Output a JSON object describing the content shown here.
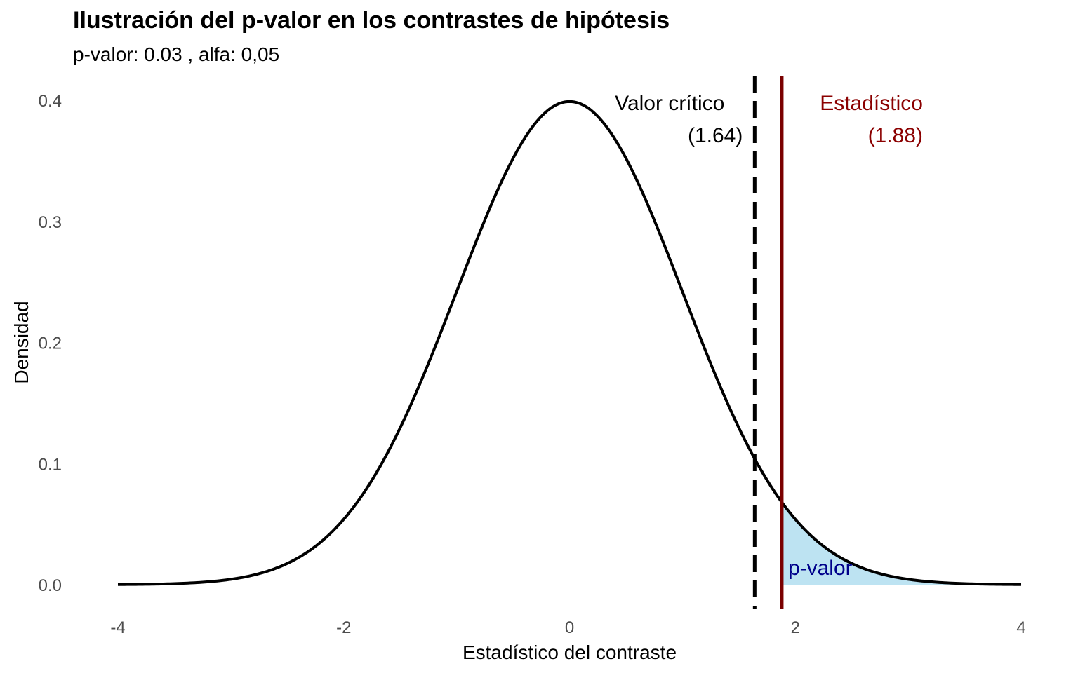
{
  "chart_data": {
    "type": "area",
    "title": "Ilustración del p-valor en los contrastes de hipótesis",
    "subtitle": "p-valor: 0.03 , alfa: 0,05",
    "xlabel": "Estadístico del contraste",
    "ylabel": "Densidad",
    "xlim": [
      -4,
      4
    ],
    "ylim": [
      0,
      0.4
    ],
    "x_ticks": [
      "-4",
      "-2",
      "0",
      "2",
      "4"
    ],
    "y_ticks": [
      "0.0",
      "0.1",
      "0.2",
      "0.3",
      "0.4"
    ],
    "grid": false,
    "series": [
      {
        "distribution": "normal",
        "mean": 0,
        "sd": 1,
        "x_range": [
          -4,
          4
        ],
        "color": "#000000"
      }
    ],
    "shaded_region": {
      "x_from": 1.88,
      "x_to": 4,
      "fill": "#bde3f2",
      "label": "p-valor",
      "label_color": "#00008b"
    },
    "vlines": [
      {
        "x": 1.64,
        "style": "dashed",
        "color": "#000000",
        "label_line1": "Valor crítico",
        "label_line2": "(1.64)"
      },
      {
        "x": 1.88,
        "style": "solid",
        "color": "#7a0000",
        "label_line1": "Estadístico",
        "label_line2": "(1.88)"
      }
    ]
  }
}
